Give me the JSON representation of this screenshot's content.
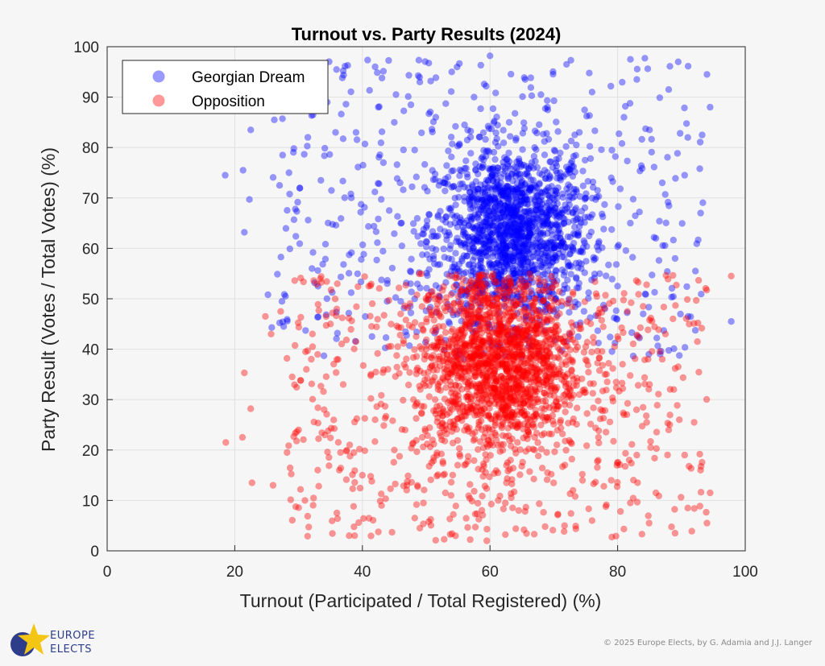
{
  "chart_data": {
    "type": "scatter",
    "title": "Turnout vs. Party Results (2024)",
    "xlabel": "Turnout (Participated / Total Registered) (%)",
    "ylabel": "Party Result (Votes / Total Votes) (%)",
    "xlim": [
      0,
      100
    ],
    "ylim": [
      0,
      100
    ],
    "xticks": [
      0,
      20,
      40,
      60,
      80,
      100
    ],
    "yticks": [
      0,
      10,
      20,
      30,
      40,
      50,
      60,
      70,
      80,
      90,
      100
    ],
    "grid": true,
    "legend_position": "top-left",
    "series": [
      {
        "name": "Georgian Dream",
        "color": "#0000ff",
        "opacity": 0.4,
        "summary": "dense cluster centered near turnout 63%, result 63%",
        "points": [
          [
            18.5,
            74.5
          ],
          [
            21.3,
            75.5
          ],
          [
            21.5,
            63.2
          ],
          [
            22.3,
            69.7
          ],
          [
            22.5,
            83.5
          ],
          [
            25.2,
            50.8
          ],
          [
            25.8,
            44.3
          ],
          [
            26.2,
            85.5
          ],
          [
            27.5,
            78.5
          ],
          [
            28.5,
            75.0
          ],
          [
            29.5,
            67.8
          ],
          [
            30.2,
            72.0
          ],
          [
            31.5,
            65.6
          ],
          [
            32.1,
            56.0
          ],
          [
            33.5,
            73.5
          ],
          [
            34.5,
            89.0
          ],
          [
            35.8,
            83.0
          ],
          [
            37.0,
            95.2
          ],
          [
            38.2,
            70.8
          ],
          [
            39.0,
            83.0
          ],
          [
            40.1,
            76.5
          ],
          [
            41.5,
            42.5
          ],
          [
            42.0,
            96.0
          ],
          [
            42.5,
            88.0
          ],
          [
            43.3,
            77.0
          ],
          [
            44.2,
            67.5
          ],
          [
            45.0,
            85.0
          ],
          [
            46.2,
            60.5
          ],
          [
            47.5,
            48.5
          ],
          [
            48.2,
            79.5
          ],
          [
            49.0,
            93.0
          ],
          [
            50.1,
            64.5
          ],
          [
            51.5,
            86.0
          ],
          [
            52.0,
            72.5
          ],
          [
            53.5,
            58.0
          ],
          [
            54.0,
            95.0
          ],
          [
            55.2,
            80.5
          ],
          [
            56.0,
            65.0
          ],
          [
            57.5,
            90.0
          ],
          [
            58.0,
            69.5
          ],
          [
            59.0,
            62.5
          ],
          [
            60.0,
            98.2
          ],
          [
            60.5,
            76.0
          ],
          [
            61.0,
            57.0
          ],
          [
            61.5,
            66.0
          ],
          [
            62.0,
            71.5
          ],
          [
            62.5,
            60.5
          ],
          [
            63.0,
            85.0
          ],
          [
            63.5,
            64.0
          ],
          [
            64.0,
            69.0
          ],
          [
            64.5,
            58.5
          ],
          [
            65.0,
            73.0
          ],
          [
            65.5,
            93.5
          ],
          [
            66.0,
            62.0
          ],
          [
            66.5,
            67.5
          ],
          [
            67.0,
            80.0
          ],
          [
            67.5,
            55.0
          ],
          [
            68.0,
            71.0
          ],
          [
            68.5,
            65.0
          ],
          [
            69.0,
            88.0
          ],
          [
            70.0,
            60.0
          ],
          [
            71.0,
            75.0
          ],
          [
            72.0,
            96.5
          ],
          [
            72.5,
            43.0
          ],
          [
            73.0,
            67.0
          ],
          [
            74.0,
            83.0
          ],
          [
            75.0,
            70.0
          ],
          [
            76.0,
            91.0
          ],
          [
            77.0,
            61.0
          ],
          [
            78.0,
            48.0
          ],
          [
            79.0,
            74.0
          ],
          [
            80.0,
            52.5
          ],
          [
            81.0,
            86.0
          ],
          [
            82.0,
            65.0
          ],
          [
            83.0,
            93.5
          ],
          [
            84.0,
            47.0
          ],
          [
            85.0,
            83.5
          ],
          [
            86.0,
            62.0
          ],
          [
            87.0,
            73.0
          ],
          [
            88.0,
            91.5
          ],
          [
            89.0,
            58.0
          ],
          [
            89.5,
            97.0
          ],
          [
            90.5,
            74.5
          ],
          [
            91.0,
            82.0
          ],
          [
            92.2,
            55.5
          ],
          [
            93.0,
            67.0
          ],
          [
            94.0,
            94.5
          ],
          [
            94.5,
            88.0
          ],
          [
            97.8,
            45.5
          ]
        ]
      },
      {
        "name": "Opposition",
        "color": "#ff0000",
        "opacity": 0.4,
        "summary": "dense cluster centered near turnout 61%, result 38%",
        "points": [
          [
            18.6,
            21.5
          ],
          [
            21.5,
            35.3
          ],
          [
            21.2,
            22.5
          ],
          [
            22.5,
            28.2
          ],
          [
            22.7,
            13.5
          ],
          [
            24.8,
            46.5
          ],
          [
            25.7,
            43.0
          ],
          [
            26.0,
            13.0
          ],
          [
            27.2,
            47.5
          ],
          [
            28.2,
            19.5
          ],
          [
            29.0,
            34.5
          ],
          [
            30.0,
            24.0
          ],
          [
            31.0,
            10.0
          ],
          [
            32.0,
            38.0
          ],
          [
            33.0,
            16.0
          ],
          [
            34.0,
            28.0
          ],
          [
            35.0,
            45.0
          ],
          [
            36.0,
            7.5
          ],
          [
            37.0,
            33.0
          ],
          [
            38.0,
            21.0
          ],
          [
            39.0,
            41.5
          ],
          [
            40.0,
            15.0
          ],
          [
            41.0,
            52.5
          ],
          [
            42.0,
            26.0
          ],
          [
            43.0,
            9.0
          ],
          [
            44.0,
            36.0
          ],
          [
            45.0,
            20.0
          ],
          [
            46.0,
            47.0
          ],
          [
            47.0,
            13.0
          ],
          [
            48.0,
            30.0
          ],
          [
            49.0,
            4.5
          ],
          [
            50.0,
            40.0
          ],
          [
            51.0,
            22.0
          ],
          [
            52.0,
            44.5
          ],
          [
            53.0,
            11.5
          ],
          [
            54.0,
            35.0
          ],
          [
            55.0,
            50.5
          ],
          [
            56.0,
            17.0
          ],
          [
            57.0,
            41.0
          ],
          [
            58.0,
            27.0
          ],
          [
            59.0,
            46.0
          ],
          [
            59.5,
            2.0
          ],
          [
            60.0,
            33.0
          ],
          [
            60.5,
            39.0
          ],
          [
            61.0,
            22.0
          ],
          [
            61.5,
            43.5
          ],
          [
            62.0,
            30.0
          ],
          [
            62.5,
            37.0
          ],
          [
            63.0,
            48.0
          ],
          [
            63.5,
            26.5
          ],
          [
            64.0,
            41.0
          ],
          [
            64.5,
            8.0
          ],
          [
            65.0,
            34.0
          ],
          [
            65.5,
            52.5
          ],
          [
            66.0,
            29.0
          ],
          [
            66.5,
            38.5
          ],
          [
            67.0,
            20.0
          ],
          [
            68.0,
            44.0
          ],
          [
            69.0,
            15.5
          ],
          [
            70.0,
            36.0
          ],
          [
            71.0,
            25.5
          ],
          [
            72.0,
            49.0
          ],
          [
            73.0,
            12.0
          ],
          [
            74.0,
            31.0
          ],
          [
            75.0,
            40.5
          ],
          [
            76.0,
            6.0
          ],
          [
            77.0,
            22.5
          ],
          [
            78.0,
            35.0
          ],
          [
            79.0,
            14.0
          ],
          [
            80.0,
            42.5
          ],
          [
            81.0,
            27.0
          ],
          [
            82.0,
            9.5
          ],
          [
            83.0,
            19.0
          ],
          [
            84.0,
            48.5
          ],
          [
            85.0,
            33.0
          ],
          [
            86.0,
            11.5
          ],
          [
            87.0,
            38.0
          ],
          [
            88.0,
            24.0
          ],
          [
            89.0,
            3.5
          ],
          [
            89.5,
            36.5
          ],
          [
            90.5,
            19.0
          ],
          [
            91.0,
            8.5
          ],
          [
            92.0,
            25.5
          ],
          [
            92.5,
            41.5
          ],
          [
            93.0,
            16.0
          ],
          [
            94.0,
            5.5
          ],
          [
            94.5,
            11.5
          ],
          [
            97.8,
            54.5
          ]
        ]
      }
    ]
  },
  "branding": {
    "logo_line1": "EUROPE",
    "logo_line2": "ELECTS",
    "copyright": "© 2025 Europe Elects, by G. Adamia and J.J. Langer"
  },
  "colors": {
    "background": "#f6f6f6",
    "plot_background": "#f6f6f6",
    "grid": "#e0e0e0",
    "axis": "#262626",
    "logo_blue": "#2d3d8a",
    "logo_yellow": "#f3c614"
  }
}
